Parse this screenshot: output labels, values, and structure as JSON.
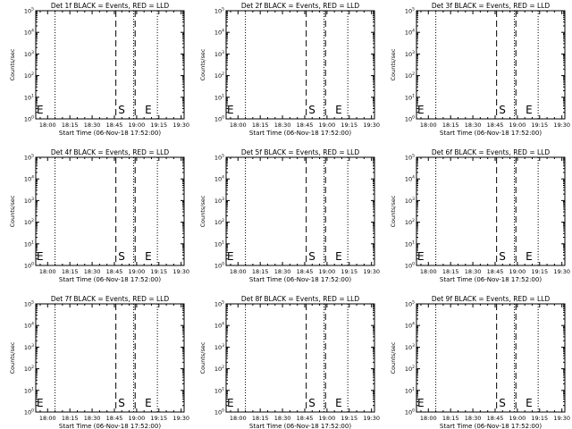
{
  "chart_data": [
    {
      "type": "line",
      "title": "Det 1f BLACK = Events, RED = LLD",
      "xlabel": "Start Time (06-Nov-18 17:52:00)",
      "ylabel": "Counts/sec",
      "x_ticks": [
        "18:00",
        "18:15",
        "18:30",
        "18:45",
        "19:00",
        "19:15",
        "19:30"
      ],
      "y_ticks": [
        "10^0",
        "10^1",
        "10^2",
        "10^3",
        "10^4",
        "10^5"
      ],
      "xlim": [
        "17:52",
        "19:32"
      ],
      "ylim": [
        1,
        100000
      ],
      "yscale": "log",
      "dotted_lines": [
        "18:05",
        "18:58",
        "19:14"
      ],
      "dashed_lines": [
        "18:46",
        "18:59"
      ],
      "markers": [
        {
          "label": "E",
          "x": "17:52"
        },
        {
          "label": "S",
          "x": "18:47"
        },
        {
          "label": "E",
          "x": "19:05"
        }
      ]
    },
    {
      "type": "line",
      "title": "Det 2f BLACK = Events, RED = LLD",
      "xlabel": "Start Time (06-Nov-18 17:52:00)",
      "ylabel": "Counts/sec",
      "x_ticks": [
        "18:00",
        "18:15",
        "18:30",
        "18:45",
        "19:00",
        "19:15",
        "19:30"
      ],
      "y_ticks": [
        "10^0",
        "10^1",
        "10^2",
        "10^3",
        "10^4",
        "10^5"
      ],
      "xlim": [
        "17:52",
        "19:32"
      ],
      "ylim": [
        1,
        100000
      ],
      "yscale": "log",
      "dotted_lines": [
        "18:05",
        "18:58",
        "19:14"
      ],
      "dashed_lines": [
        "18:46",
        "18:59"
      ],
      "markers": [
        {
          "label": "E",
          "x": "17:52"
        },
        {
          "label": "S",
          "x": "18:47"
        },
        {
          "label": "E",
          "x": "19:05"
        }
      ]
    },
    {
      "type": "line",
      "title": "Det 3f BLACK = Events, RED = LLD",
      "xlabel": "Start Time (06-Nov-18 17:52:00)",
      "ylabel": "Counts/sec",
      "x_ticks": [
        "18:00",
        "18:15",
        "18:30",
        "18:45",
        "19:00",
        "19:15",
        "19:30"
      ],
      "y_ticks": [
        "10^0",
        "10^1",
        "10^2",
        "10^3",
        "10^4",
        "10^5"
      ],
      "xlim": [
        "17:52",
        "19:32"
      ],
      "ylim": [
        1,
        100000
      ],
      "yscale": "log",
      "dotted_lines": [
        "18:05",
        "18:58",
        "19:14"
      ],
      "dashed_lines": [
        "18:46",
        "18:59"
      ],
      "markers": [
        {
          "label": "E",
          "x": "17:52"
        },
        {
          "label": "S",
          "x": "18:47"
        },
        {
          "label": "E",
          "x": "19:05"
        }
      ]
    },
    {
      "type": "line",
      "title": "Det 4f BLACK = Events, RED = LLD",
      "xlabel": "Start Time (06-Nov-18 17:52:00)",
      "ylabel": "Counts/sec",
      "x_ticks": [
        "18:00",
        "18:15",
        "18:30",
        "18:45",
        "19:00",
        "19:15",
        "19:30"
      ],
      "y_ticks": [
        "10^0",
        "10^1",
        "10^2",
        "10^3",
        "10^4",
        "10^5"
      ],
      "xlim": [
        "17:52",
        "19:32"
      ],
      "ylim": [
        1,
        100000
      ],
      "yscale": "log",
      "dotted_lines": [
        "18:05",
        "18:58",
        "19:14"
      ],
      "dashed_lines": [
        "18:46",
        "18:59"
      ],
      "markers": [
        {
          "label": "E",
          "x": "17:52"
        },
        {
          "label": "S",
          "x": "18:47"
        },
        {
          "label": "E",
          "x": "19:05"
        }
      ]
    },
    {
      "type": "line",
      "title": "Det 5f BLACK = Events, RED = LLD",
      "xlabel": "Start Time (06-Nov-18 17:52:00)",
      "ylabel": "Counts/sec",
      "x_ticks": [
        "18:00",
        "18:15",
        "18:30",
        "18:45",
        "19:00",
        "19:15",
        "19:30"
      ],
      "y_ticks": [
        "10^0",
        "10^1",
        "10^2",
        "10^3",
        "10^4",
        "10^5"
      ],
      "xlim": [
        "17:52",
        "19:32"
      ],
      "ylim": [
        1,
        100000
      ],
      "yscale": "log",
      "dotted_lines": [
        "18:05",
        "18:58",
        "19:14"
      ],
      "dashed_lines": [
        "18:46",
        "18:59"
      ],
      "markers": [
        {
          "label": "E",
          "x": "17:52"
        },
        {
          "label": "S",
          "x": "18:47"
        },
        {
          "label": "E",
          "x": "19:05"
        }
      ]
    },
    {
      "type": "line",
      "title": "Det 6f BLACK = Events, RED = LLD",
      "xlabel": "Start Time (06-Nov-18 17:52:00)",
      "ylabel": "Counts/sec",
      "x_ticks": [
        "18:00",
        "18:15",
        "18:30",
        "18:45",
        "19:00",
        "19:15",
        "19:30"
      ],
      "y_ticks": [
        "10^0",
        "10^1",
        "10^2",
        "10^3",
        "10^4",
        "10^5"
      ],
      "xlim": [
        "17:52",
        "19:32"
      ],
      "ylim": [
        1,
        100000
      ],
      "yscale": "log",
      "dotted_lines": [
        "18:05",
        "18:58",
        "19:14"
      ],
      "dashed_lines": [
        "18:46",
        "18:59"
      ],
      "markers": [
        {
          "label": "E",
          "x": "17:52"
        },
        {
          "label": "S",
          "x": "18:47"
        },
        {
          "label": "E",
          "x": "19:05"
        }
      ]
    },
    {
      "type": "line",
      "title": "Det 7f BLACK = Events, RED = LLD",
      "xlabel": "Start Time (06-Nov-18 17:52:00)",
      "ylabel": "Counts/sec",
      "x_ticks": [
        "18:00",
        "18:15",
        "18:30",
        "18:45",
        "19:00",
        "19:15",
        "19:30"
      ],
      "y_ticks": [
        "10^0",
        "10^1",
        "10^2",
        "10^3",
        "10^4",
        "10^5"
      ],
      "xlim": [
        "17:52",
        "19:32"
      ],
      "ylim": [
        1,
        100000
      ],
      "yscale": "log",
      "dotted_lines": [
        "18:05",
        "18:58",
        "19:14"
      ],
      "dashed_lines": [
        "18:46",
        "18:59"
      ],
      "markers": [
        {
          "label": "E",
          "x": "17:52"
        },
        {
          "label": "S",
          "x": "18:47"
        },
        {
          "label": "E",
          "x": "19:05"
        }
      ]
    },
    {
      "type": "line",
      "title": "Det 8f BLACK = Events, RED = LLD",
      "xlabel": "Start Time (06-Nov-18 17:52:00)",
      "ylabel": "Counts/sec",
      "x_ticks": [
        "18:00",
        "18:15",
        "18:30",
        "18:45",
        "19:00",
        "19:15",
        "19:30"
      ],
      "y_ticks": [
        "10^0",
        "10^1",
        "10^2",
        "10^3",
        "10^4",
        "10^5"
      ],
      "xlim": [
        "17:52",
        "19:32"
      ],
      "ylim": [
        1,
        100000
      ],
      "yscale": "log",
      "dotted_lines": [
        "18:05",
        "18:58",
        "19:14"
      ],
      "dashed_lines": [
        "18:46",
        "18:59"
      ],
      "markers": [
        {
          "label": "E",
          "x": "17:52"
        },
        {
          "label": "S",
          "x": "18:47"
        },
        {
          "label": "E",
          "x": "19:05"
        }
      ]
    },
    {
      "type": "line",
      "title": "Det 9f BLACK = Events, RED = LLD",
      "xlabel": "Start Time (06-Nov-18 17:52:00)",
      "ylabel": "Counts/sec",
      "x_ticks": [
        "18:00",
        "18:15",
        "18:30",
        "18:45",
        "19:00",
        "19:15",
        "19:30"
      ],
      "y_ticks": [
        "10^0",
        "10^1",
        "10^2",
        "10^3",
        "10^4",
        "10^5"
      ],
      "xlim": [
        "17:52",
        "19:32"
      ],
      "ylim": [
        1,
        100000
      ],
      "yscale": "log",
      "dotted_lines": [
        "18:05",
        "18:58",
        "19:14"
      ],
      "dashed_lines": [
        "18:46",
        "18:59"
      ],
      "markers": [
        {
          "label": "E",
          "x": "17:52"
        },
        {
          "label": "S",
          "x": "18:47"
        },
        {
          "label": "E",
          "x": "19:05"
        }
      ]
    }
  ]
}
